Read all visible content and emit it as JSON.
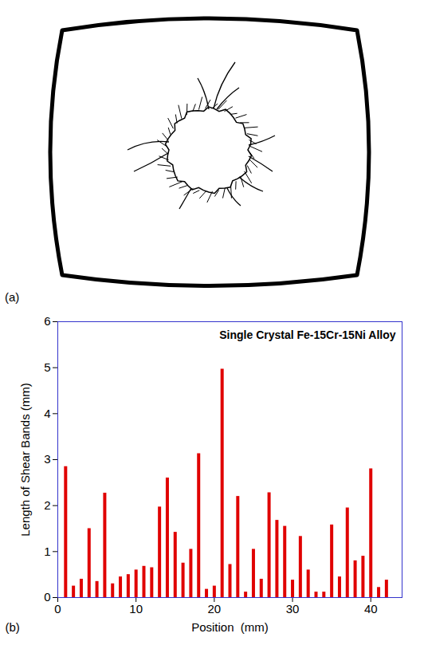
{
  "figure_labels": {
    "a": "(a)",
    "b": "(b)"
  },
  "chart_data": {
    "type": "bar",
    "title": "Single Crystal Fe-15Cr-15Ni Alloy",
    "x_label": "Position  (mm)",
    "y_label": "Length of Shear Bands (mm)",
    "x": [
      1,
      2,
      3,
      4,
      5,
      6,
      7,
      8,
      9,
      10,
      11,
      12,
      13,
      14,
      15,
      16,
      17,
      18,
      19,
      20,
      21,
      22,
      23,
      24,
      25,
      26,
      27,
      28,
      29,
      30,
      31,
      32,
      33,
      34,
      35,
      36,
      37,
      38,
      39,
      40,
      41,
      42
    ],
    "values": [
      2.85,
      0.25,
      0.4,
      1.5,
      0.35,
      2.27,
      0.3,
      0.45,
      0.5,
      0.6,
      0.68,
      0.65,
      1.97,
      2.6,
      1.42,
      0.75,
      1.05,
      3.13,
      0.18,
      0.25,
      4.97,
      0.72,
      2.2,
      0.12,
      1.05,
      0.4,
      2.28,
      1.68,
      1.55,
      0.38,
      1.33,
      0.6,
      0.12,
      0.12,
      1.58,
      0.45,
      1.95,
      0.8,
      0.9,
      2.8,
      0.22,
      0.38
    ],
    "color": "#e00000",
    "xlim": [
      0,
      44
    ],
    "xticks": [
      0,
      10,
      20,
      30,
      40
    ],
    "ylim": [
      0,
      6
    ],
    "yticks": [
      0,
      1,
      2,
      3,
      4,
      5,
      6
    ],
    "grid": false
  }
}
